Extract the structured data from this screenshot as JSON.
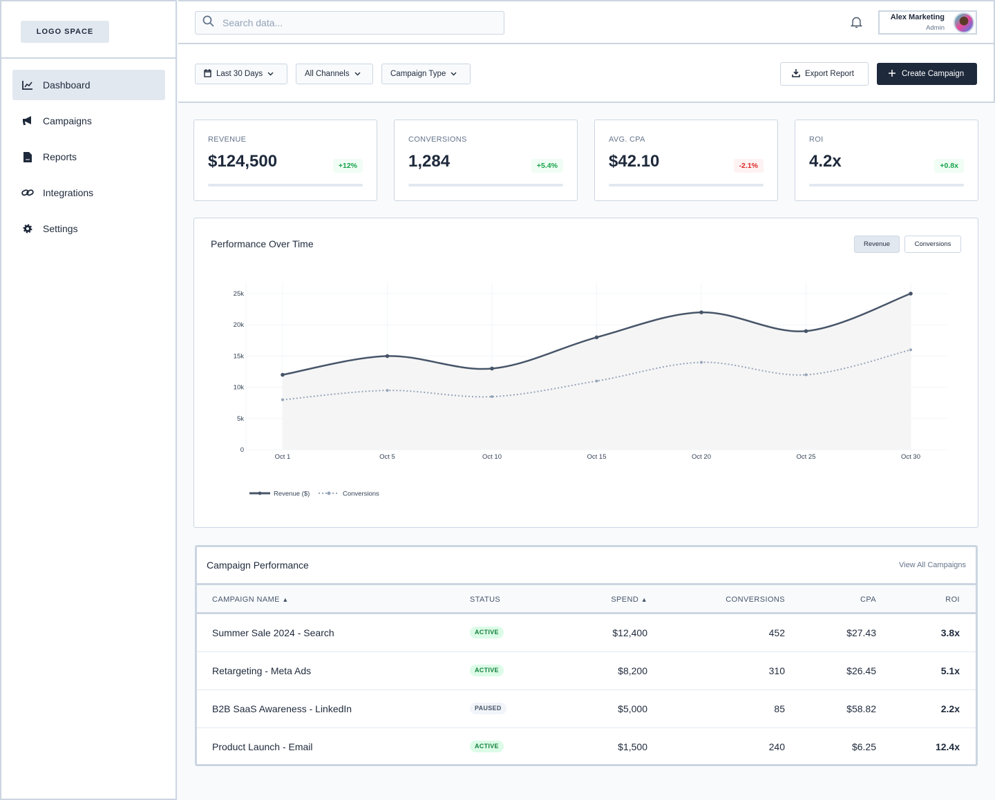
{
  "logo": "LOGO SPACE",
  "sidebar": {
    "items": [
      {
        "label": "Dashboard",
        "icon": "chart-line-icon",
        "active": true
      },
      {
        "label": "Campaigns",
        "icon": "megaphone-icon"
      },
      {
        "label": "Reports",
        "icon": "file-icon"
      },
      {
        "label": "Integrations",
        "icon": "link-icon"
      },
      {
        "label": "Settings",
        "icon": "gear-icon"
      }
    ]
  },
  "header": {
    "search_placeholder": "Search data...",
    "user_name": "Alex Marketing",
    "user_role": "Admin"
  },
  "filters": {
    "date": "Last 30 Days",
    "channels": "All Channels",
    "type": "Campaign Type",
    "export": "Export Report",
    "create": "Create Campaign"
  },
  "kpis": [
    {
      "label": "REVENUE",
      "value": "$124,500",
      "change": "+12%",
      "trend": "up"
    },
    {
      "label": "CONVERSIONS",
      "value": "1,284",
      "change": "+5.4%",
      "trend": "up"
    },
    {
      "label": "AVG. CPA",
      "value": "$42.10",
      "change": "-2.1%",
      "trend": "down"
    },
    {
      "label": "ROI",
      "value": "4.2x",
      "change": "+0.8x",
      "trend": "up"
    }
  ],
  "chart_panel": {
    "title": "Performance Over Time",
    "toggle": [
      "Revenue",
      "Conversions"
    ],
    "active_toggle": "Revenue"
  },
  "chart_data": {
    "type": "line",
    "categories": [
      "Oct 1",
      "Oct 5",
      "Oct 10",
      "Oct 15",
      "Oct 20",
      "Oct 25",
      "Oct 30"
    ],
    "yticks": [
      "0",
      "5k",
      "10k",
      "15k",
      "20k",
      "25k"
    ],
    "ylim": [
      0,
      25000
    ],
    "grid": true,
    "legend": "bottom-left",
    "series": [
      {
        "name": "Revenue ($)",
        "values": [
          12000,
          15000,
          13000,
          18000,
          22000,
          19000,
          25000
        ],
        "color": "#475569",
        "style": "solid",
        "fill": true
      },
      {
        "name": "Conversions",
        "values": [
          8000,
          9500,
          8500,
          11000,
          14000,
          12000,
          16000
        ],
        "color": "#94a3b8",
        "style": "dotted"
      }
    ]
  },
  "table": {
    "title": "Campaign Performance",
    "view_all": "View All Campaigns",
    "columns": [
      "CAMPAIGN NAME",
      "STATUS",
      "SPEND",
      "CONVERSIONS",
      "CPA",
      "ROI"
    ],
    "rows": [
      {
        "name": "Summer Sale 2024 - Search",
        "status": "ACTIVE",
        "spend": "$12,400",
        "conversions": "452",
        "cpa": "$27.43",
        "roi": "3.8x"
      },
      {
        "name": "Retargeting - Meta Ads",
        "status": "ACTIVE",
        "spend": "$8,200",
        "conversions": "310",
        "cpa": "$26.45",
        "roi": "5.1x"
      },
      {
        "name": "B2B SaaS Awareness - LinkedIn",
        "status": "PAUSED",
        "spend": "$5,000",
        "conversions": "85",
        "cpa": "$58.82",
        "roi": "2.2x"
      },
      {
        "name": "Product Launch - Email",
        "status": "ACTIVE",
        "spend": "$1,500",
        "conversions": "240",
        "cpa": "$6.25",
        "roi": "12.4x"
      }
    ]
  }
}
